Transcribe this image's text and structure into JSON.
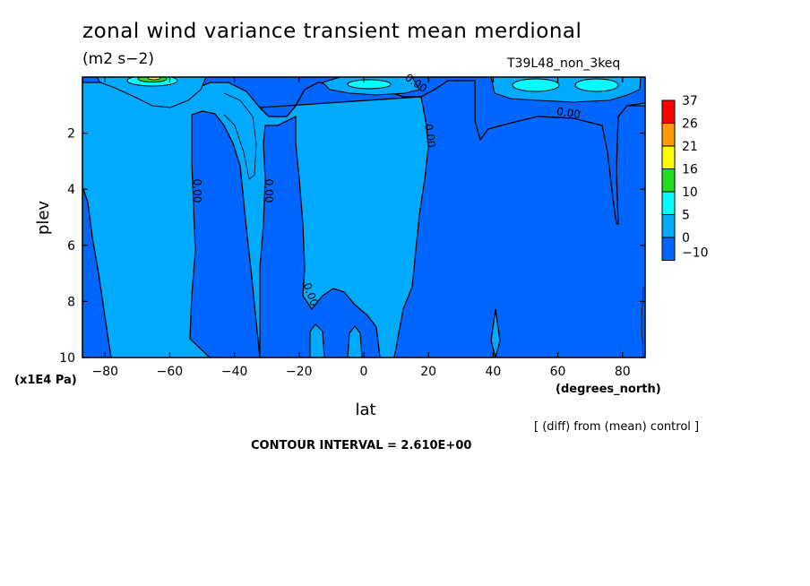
{
  "header": {
    "title": "zonal wind variance transient mean merdional",
    "units": "(m2 s−2)",
    "run_label": "T39L48_non_3keq"
  },
  "footer": {
    "diff_note": "[ (diff) from (mean) control ]",
    "contour_interval": "CONTOUR INTERVAL = 2.610E+00"
  },
  "chart_data": {
    "type": "heatmap",
    "title": "zonal wind variance transient mean merdional",
    "xlabel": "lat",
    "xunits": "(degrees_north)",
    "ylabel": "plev",
    "yunits": "(x1E4 Pa)",
    "xlim": [
      -87,
      87
    ],
    "ylim": [
      10,
      0
    ],
    "x_ticks": [
      -80,
      -60,
      -40,
      -20,
      0,
      20,
      40,
      60,
      80
    ],
    "x_tick_labels": [
      "−80",
      "−60",
      "−40",
      "−20",
      "0",
      "20",
      "40",
      "60",
      "80"
    ],
    "y_ticks": [
      2,
      4,
      6,
      8,
      10
    ],
    "y_tick_labels": [
      "2",
      "4",
      "6",
      "8",
      "10"
    ],
    "colorbar": {
      "levels": [
        "37",
        "26",
        "21",
        "16",
        "10",
        "5",
        "0",
        "−10"
      ],
      "colors": [
        "#ff0000",
        "#ff9900",
        "#ffff00",
        "#22dd22",
        "#00ffff",
        "#00aaff",
        "#0066ff"
      ]
    },
    "contour_labels": [
      "0.00",
      "0.00",
      "0.00",
      "0.00",
      "0.00",
      "0.00"
    ],
    "grid": false,
    "legend_placement": "right"
  }
}
